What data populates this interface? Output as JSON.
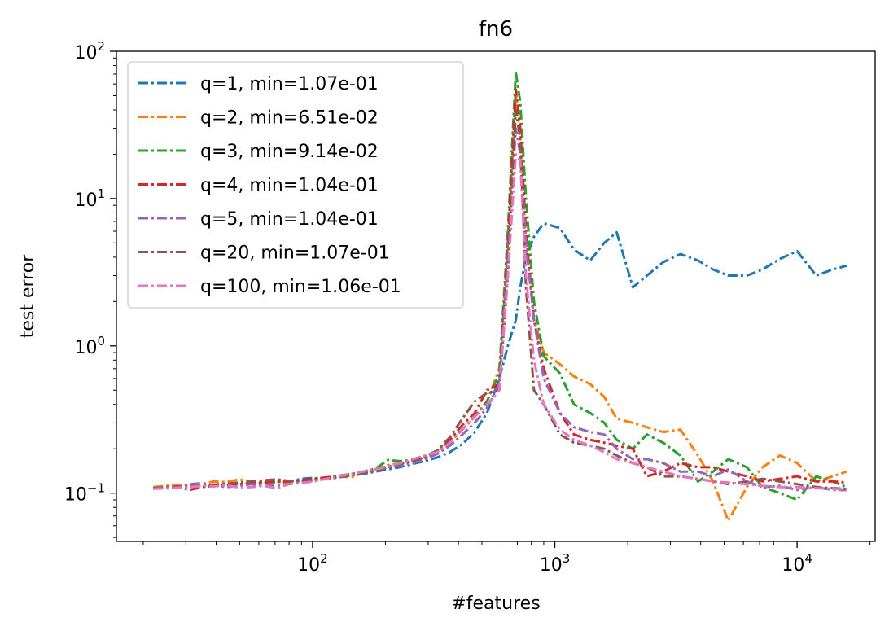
{
  "chart_data": {
    "type": "line",
    "title": "fn6",
    "xlabel": "#features",
    "ylabel": "test error",
    "xscale": "log",
    "yscale": "log",
    "xlim": [
      15.5,
      21000
    ],
    "ylim": [
      0.047,
      100
    ],
    "x_ticks": [
      {
        "value": 100,
        "base": "10",
        "exp": "2"
      },
      {
        "value": 1000,
        "base": "10",
        "exp": "3"
      },
      {
        "value": 10000,
        "base": "10",
        "exp": "4"
      }
    ],
    "y_ticks": [
      {
        "value": 0.1,
        "base": "10",
        "exp": "−1"
      },
      {
        "value": 1,
        "base": "10",
        "exp": "0"
      },
      {
        "value": 10,
        "base": "10",
        "exp": "1"
      },
      {
        "value": 100,
        "base": "10",
        "exp": "2"
      }
    ],
    "grid": false,
    "legend_position": "top-left",
    "line_style": "dash-dot",
    "x": [
      22,
      25,
      28,
      31,
      35,
      39,
      44,
      50,
      56,
      63,
      71,
      80,
      90,
      101,
      114,
      128,
      144,
      162,
      182,
      205,
      230,
      259,
      291,
      328,
      369,
      415,
      467,
      525,
      590,
      640,
      690,
      720,
      760,
      820,
      900,
      1050,
      1200,
      1400,
      1600,
      1800,
      2100,
      2400,
      2800,
      3300,
      3900,
      4500,
      5200,
      6200,
      7200,
      8500,
      10000,
      12000,
      14000,
      16000
    ],
    "series": [
      {
        "name": "q=1, min=1.07e-01",
        "color": "#1f77b4",
        "values": [
          0.108,
          0.109,
          0.11,
          0.111,
          0.113,
          0.112,
          0.115,
          0.116,
          0.118,
          0.117,
          0.119,
          0.12,
          0.125,
          0.127,
          0.124,
          0.13,
          0.133,
          0.135,
          0.14,
          0.145,
          0.15,
          0.158,
          0.165,
          0.175,
          0.19,
          0.215,
          0.26,
          0.35,
          0.6,
          1.0,
          1.5,
          2.5,
          4.0,
          5.5,
          6.8,
          6.3,
          4.5,
          3.8,
          5.0,
          5.9,
          2.5,
          3.0,
          3.7,
          4.2,
          3.8,
          3.3,
          3.0,
          3.0,
          3.3,
          3.9,
          4.4,
          3.0,
          3.3,
          3.5
        ]
      },
      {
        "name": "q=2, min=6.51e-02",
        "color": "#ff7f0e",
        "values": [
          0.11,
          0.112,
          0.114,
          0.113,
          0.115,
          0.12,
          0.119,
          0.124,
          0.118,
          0.117,
          0.12,
          0.117,
          0.12,
          0.125,
          0.127,
          0.13,
          0.128,
          0.137,
          0.145,
          0.155,
          0.16,
          0.168,
          0.175,
          0.19,
          0.22,
          0.27,
          0.33,
          0.42,
          0.7,
          5.0,
          55.0,
          25.0,
          5.0,
          1.5,
          0.9,
          0.75,
          0.62,
          0.55,
          0.45,
          0.32,
          0.3,
          0.28,
          0.26,
          0.27,
          0.18,
          0.12,
          0.065,
          0.11,
          0.15,
          0.18,
          0.16,
          0.12,
          0.13,
          0.14
        ]
      },
      {
        "name": "q=3, min=9.14e-02",
        "color": "#2ca02c",
        "values": [
          0.108,
          0.11,
          0.109,
          0.112,
          0.113,
          0.114,
          0.116,
          0.115,
          0.118,
          0.12,
          0.119,
          0.121,
          0.122,
          0.124,
          0.127,
          0.131,
          0.135,
          0.14,
          0.147,
          0.168,
          0.165,
          0.168,
          0.178,
          0.195,
          0.225,
          0.27,
          0.33,
          0.42,
          0.65,
          6.0,
          72.0,
          45.0,
          10.0,
          2.0,
          0.85,
          0.65,
          0.4,
          0.35,
          0.3,
          0.23,
          0.2,
          0.25,
          0.22,
          0.18,
          0.12,
          0.14,
          0.17,
          0.15,
          0.11,
          0.1,
          0.09,
          0.13,
          0.12,
          0.11
        ]
      },
      {
        "name": "q=4, min=1.04e-01",
        "color": "#d62728",
        "values": [
          0.108,
          0.109,
          0.111,
          0.105,
          0.11,
          0.112,
          0.113,
          0.115,
          0.117,
          0.118,
          0.12,
          0.12,
          0.122,
          0.125,
          0.128,
          0.13,
          0.133,
          0.138,
          0.145,
          0.152,
          0.16,
          0.165,
          0.175,
          0.19,
          0.23,
          0.29,
          0.35,
          0.5,
          0.55,
          5.0,
          55.0,
          30.0,
          6.0,
          1.5,
          0.7,
          0.35,
          0.25,
          0.23,
          0.22,
          0.21,
          0.2,
          0.13,
          0.14,
          0.16,
          0.15,
          0.15,
          0.14,
          0.13,
          0.12,
          0.125,
          0.13,
          0.12,
          0.12,
          0.118
        ]
      },
      {
        "name": "q=5, min=1.04e-01",
        "color": "#9467bd",
        "values": [
          0.108,
          0.109,
          0.11,
          0.115,
          0.117,
          0.113,
          0.11,
          0.112,
          0.115,
          0.112,
          0.113,
          0.115,
          0.12,
          0.122,
          0.125,
          0.128,
          0.132,
          0.137,
          0.142,
          0.15,
          0.155,
          0.16,
          0.17,
          0.185,
          0.21,
          0.25,
          0.3,
          0.38,
          0.55,
          4.0,
          30.0,
          20.0,
          5.0,
          1.5,
          0.6,
          0.35,
          0.28,
          0.26,
          0.25,
          0.2,
          0.17,
          0.17,
          0.16,
          0.14,
          0.14,
          0.13,
          0.145,
          0.12,
          0.11,
          0.112,
          0.105,
          0.11,
          0.105,
          0.105
        ]
      },
      {
        "name": "q=20, min=1.07e-01",
        "color": "#8c564b",
        "values": [
          0.108,
          0.109,
          0.11,
          0.111,
          0.112,
          0.114,
          0.116,
          0.118,
          0.12,
          0.122,
          0.124,
          0.121,
          0.12,
          0.122,
          0.125,
          0.128,
          0.132,
          0.137,
          0.143,
          0.15,
          0.158,
          0.165,
          0.175,
          0.195,
          0.24,
          0.32,
          0.42,
          0.48,
          0.5,
          3.0,
          40.0,
          25.0,
          2.5,
          0.5,
          0.4,
          0.25,
          0.22,
          0.21,
          0.2,
          0.18,
          0.16,
          0.15,
          0.13,
          0.13,
          0.125,
          0.12,
          0.115,
          0.12,
          0.125,
          0.12,
          0.115,
          0.11,
          0.108,
          0.107
        ]
      },
      {
        "name": "q=100, min=1.06e-01",
        "color": "#e377c2",
        "values": [
          0.107,
          0.108,
          0.109,
          0.11,
          0.112,
          0.111,
          0.113,
          0.109,
          0.11,
          0.112,
          0.108,
          0.115,
          0.117,
          0.12,
          0.125,
          0.13,
          0.135,
          0.14,
          0.145,
          0.152,
          0.16,
          0.17,
          0.18,
          0.19,
          0.22,
          0.27,
          0.33,
          0.4,
          0.5,
          3.0,
          20.0,
          18.0,
          3.0,
          0.8,
          0.4,
          0.27,
          0.23,
          0.21,
          0.19,
          0.17,
          0.16,
          0.15,
          0.14,
          0.13,
          0.125,
          0.12,
          0.118,
          0.115,
          0.112,
          0.11,
          0.11,
          0.108,
          0.107,
          0.106
        ]
      }
    ]
  }
}
